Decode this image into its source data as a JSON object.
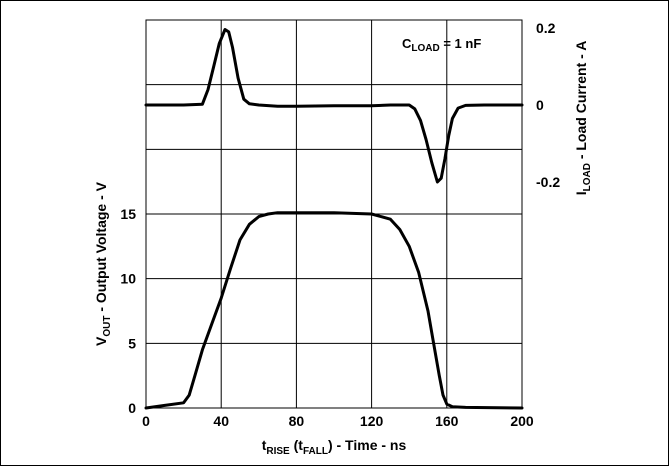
{
  "chart_data": {
    "type": "line",
    "x_axis": {
      "label_main": "t",
      "label_sub1": "RISE",
      "label_mid": " (t",
      "label_sub2": "FALL",
      "label_tail": ") - Time - ns",
      "range": [
        0,
        200
      ],
      "ticks": [
        "0",
        "40",
        "80",
        "120",
        "160",
        "200"
      ]
    },
    "y_left": {
      "label_main": "V",
      "label_sub": "OUT",
      "label_tail": " - Output Voltage - V",
      "range": [
        0,
        30
      ],
      "ticks": [
        "0",
        "5",
        "10",
        "15"
      ],
      "tick_values": [
        0,
        5,
        10,
        15
      ]
    },
    "y_right": {
      "label_main": "I",
      "label_sub": "LOAD",
      "label_tail": " - Load Current - A",
      "range": [
        -0.2,
        0.2
      ],
      "ticks": [
        "0.2",
        "0",
        "-0.2"
      ],
      "tick_values": [
        0.2,
        0,
        -0.2
      ]
    },
    "annotation": {
      "main": "C",
      "sub": "LOAD",
      "tail": " = 1 nF"
    },
    "grid": true,
    "series": [
      {
        "axis": "left",
        "x": [
          0,
          10,
          20,
          23,
          26,
          30,
          35,
          40,
          45,
          50,
          55,
          60,
          65,
          70,
          80,
          100,
          120,
          130,
          135,
          140,
          145,
          150,
          153,
          156,
          158,
          160,
          163,
          170,
          200
        ],
        "y": [
          0,
          0.2,
          0.4,
          1.0,
          2.5,
          4.5,
          6.5,
          8.5,
          10.8,
          13.0,
          14.2,
          14.8,
          15.0,
          15.1,
          15.1,
          15.1,
          15.0,
          14.6,
          13.8,
          12.5,
          10.5,
          7.5,
          5.0,
          2.5,
          1.0,
          0.3,
          0.1,
          0.05,
          0.0
        ]
      },
      {
        "axis": "right",
        "x": [
          0,
          10,
          20,
          30,
          33,
          36,
          39,
          42,
          44,
          46,
          49,
          52,
          55,
          60,
          70,
          80,
          100,
          120,
          130,
          140,
          143,
          146,
          149,
          152,
          155,
          157,
          159,
          161,
          163,
          166,
          170,
          180,
          200
        ],
        "y": [
          0,
          0,
          0,
          0.002,
          0.04,
          0.1,
          0.16,
          0.196,
          0.19,
          0.15,
          0.07,
          0.015,
          0.003,
          0,
          -0.003,
          -0.003,
          -0.002,
          -0.002,
          0,
          0,
          -0.01,
          -0.04,
          -0.09,
          -0.15,
          -0.2,
          -0.19,
          -0.14,
          -0.08,
          -0.035,
          -0.008,
          -0.001,
          0,
          0
        ]
      }
    ]
  }
}
